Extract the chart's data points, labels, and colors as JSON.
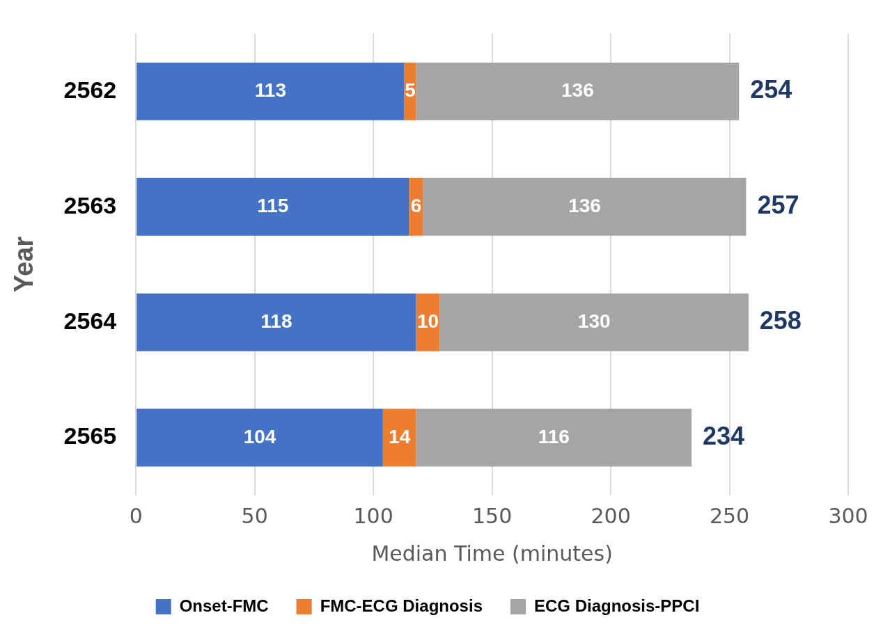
{
  "chart_data": {
    "type": "bar",
    "orientation": "horizontal",
    "stacked": true,
    "xlabel": "Median Time (minutes)",
    "ylabel": "Year",
    "categories": [
      "2562",
      "2563",
      "2564",
      "2565"
    ],
    "series": [
      {
        "name": "Onset-FMC",
        "color": "#4472c4",
        "values": [
          113,
          115,
          118,
          104
        ]
      },
      {
        "name": "FMC-ECG Diagnosis",
        "color": "#ed7d31",
        "values": [
          5,
          6,
          10,
          14
        ]
      },
      {
        "name": "ECG Diagnosis-PPCI",
        "color": "#a5a5a5",
        "values": [
          136,
          136,
          130,
          116
        ]
      }
    ],
    "totals": [
      "254",
      "257",
      "258",
      "234"
    ],
    "xlim": [
      0,
      300
    ],
    "xticks": [
      0,
      50,
      100,
      150,
      200,
      250,
      300
    ],
    "grid": "x",
    "legend": "bottom",
    "data_labels": true
  }
}
